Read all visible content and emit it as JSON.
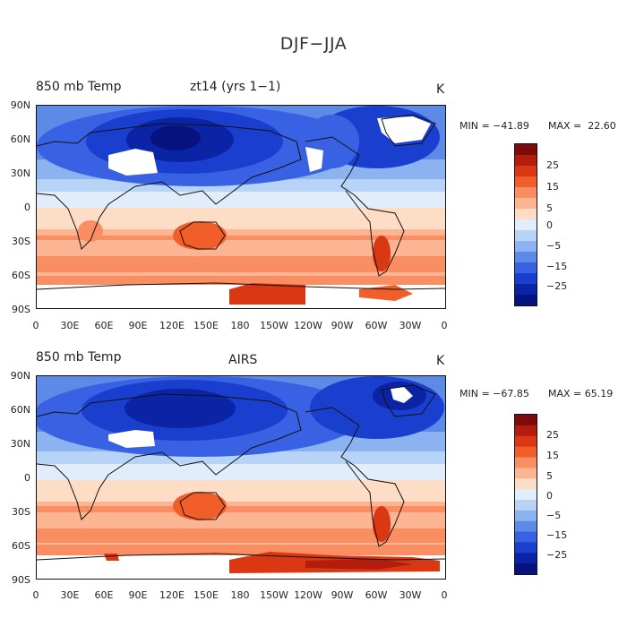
{
  "figure_title": "DJF−JJA",
  "colorbar_levels": [
    "25",
    "15",
    "5",
    "0",
    "−5",
    "−15",
    "−25"
  ],
  "colorbar_colors": [
    "#7d0b0b",
    "#b41c0e",
    "#d93812",
    "#f25e2a",
    "#f98e62",
    "#fbb592",
    "#fdddc6",
    "#e2edfb",
    "#b7d3f6",
    "#8cb3ef",
    "#5d8ae6",
    "#3862e3",
    "#1a3fcf",
    "#0b24a6",
    "#06137e"
  ],
  "panels": [
    {
      "left_label": "850 mb Temp",
      "center_label": "zt14 (yrs 1−1)",
      "unit": "K",
      "min_label": "MIN = −41.89",
      "max_label": "MAX =  22.60"
    },
    {
      "left_label": "850 mb Temp",
      "center_label": "AIRS",
      "unit": "K",
      "min_label": "MIN = −67.85",
      "max_label": "MAX = 65.19"
    }
  ],
  "lat_ticks": [
    "90N",
    "60N",
    "30N",
    "0",
    "30S",
    "60S",
    "90S"
  ],
  "lon_ticks": [
    "0",
    "30E",
    "60E",
    "90E",
    "120E",
    "150E",
    "180",
    "150W",
    "120W",
    "90W",
    "60W",
    "30W",
    "0"
  ]
}
